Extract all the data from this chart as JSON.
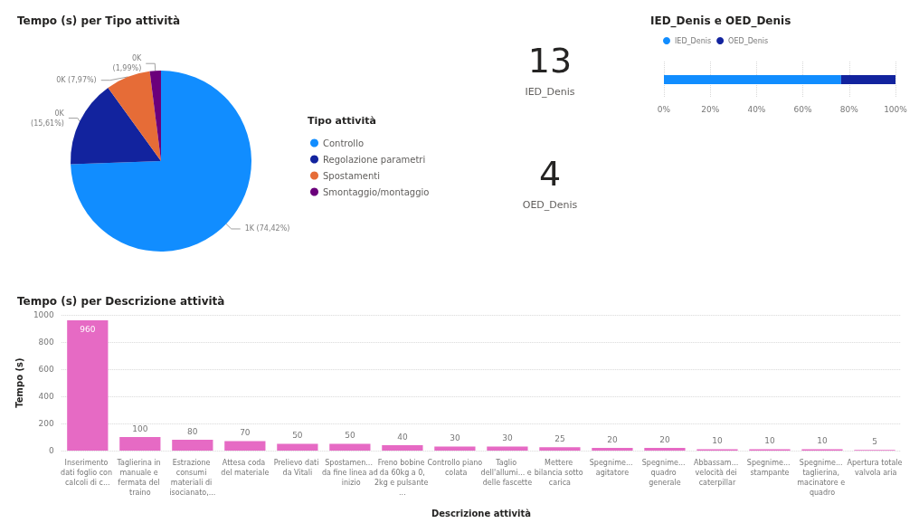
{
  "chart_data": [
    {
      "type": "pie",
      "title": "Tempo (s) per Tipo attività",
      "legend_title": "Tipo attività",
      "legend": "right",
      "categories": [
        "Controllo",
        "Regolazione parametri",
        "Spostamenti",
        "Smontaggio/montaggio"
      ],
      "values": [
        74.42,
        15.61,
        7.97,
        1.99
      ],
      "value_labels": [
        "1K (74,42%)",
        "0K\n(15,61%)",
        "0K (7,97%)",
        "0K\n(1,99%)"
      ],
      "colors": [
        "#118dff",
        "#12239e",
        "#e66c37",
        "#6b007b"
      ]
    },
    {
      "type": "other",
      "annotations": [
        "13",
        "IED_Denis",
        "4",
        "OED_Denis"
      ]
    },
    {
      "type": "bar",
      "title": "IED_Denis e OED_Denis",
      "orientation": "horizontal",
      "stacked": true,
      "legend": "top left",
      "grid": "x",
      "categories": [
        null
      ],
      "series": [
        {
          "name": "IED_Denis",
          "color": "#118dff",
          "values": [
            76.5
          ]
        },
        {
          "name": "OED_Denis",
          "color": "#12239e",
          "values": [
            23.5
          ]
        }
      ],
      "xlim": [
        0,
        100
      ],
      "xticks": [
        {
          "value": 0,
          "label": "0%"
        },
        {
          "value": 20,
          "label": "20%"
        },
        {
          "value": 40,
          "label": "40%"
        },
        {
          "value": 60,
          "label": "60%"
        },
        {
          "value": 80,
          "label": "80%"
        },
        {
          "value": 100,
          "label": "100%"
        }
      ]
    },
    {
      "type": "bar",
      "title": "Tempo (s) per Descrizione attività",
      "xlabel": "Descrizione attività",
      "ylabel": "Tempo (s)",
      "grid": "y",
      "data_labels": true,
      "categories": [
        "Inserimento dati foglio con calcoli di c...",
        "Taglierina in manuale e fermata del traino",
        "Estrazione consumi materiali di isocianato,...",
        "Attesa coda del materiale",
        "Prelievo dati da Vitali",
        "Spostamen... da fine linea ad inizio",
        "Freno bobine da 60kg a 0,2kg e pulsante ...",
        "Controllo piano colata",
        "Taglio dell'allumi... e delle fascette",
        "Mettere bilancia sotto carica",
        "Spegnime... agitatore",
        "Spegnime... quadro generale",
        "Abbassam... velocità dei caterpillar",
        "Spegnime... stampante",
        "Spegnime... taglierina, macinatore e quadro",
        "Apertura totale valvola aria"
      ],
      "values": [
        960,
        100,
        80,
        70,
        50,
        50,
        40,
        30,
        30,
        25,
        20,
        20,
        10,
        10,
        10,
        5
      ],
      "color": "#e66ac4",
      "ylim": [
        0,
        1000
      ],
      "yticks": [
        0,
        200,
        400,
        600,
        800,
        1000
      ]
    }
  ]
}
